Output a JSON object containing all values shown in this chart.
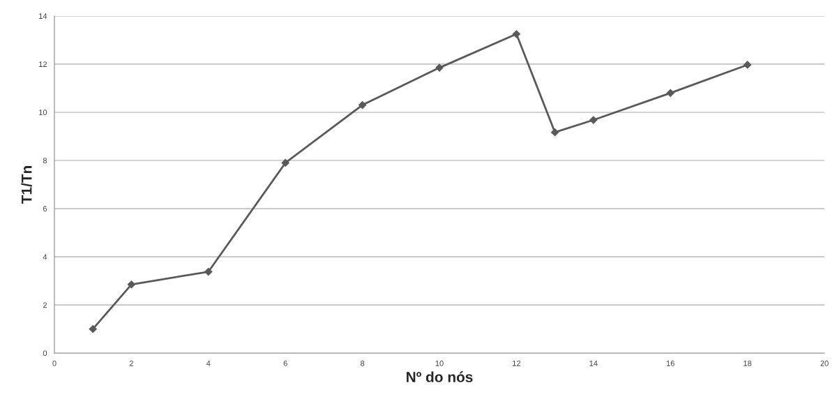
{
  "chart_data": {
    "type": "line",
    "xlabel": "Nº do nós",
    "ylabel": "T1/Tn",
    "x": [
      1,
      2,
      4,
      6,
      8,
      10,
      12,
      13,
      14,
      16,
      18
    ],
    "series": [
      {
        "color": "#595959",
        "values": [
          1.0,
          2.85,
          3.38,
          7.9,
          10.3,
          11.85,
          13.25,
          9.17,
          9.68,
          10.8,
          11.97
        ]
      }
    ],
    "xlim": [
      0,
      20
    ],
    "xticks": [
      0,
      2,
      4,
      6,
      8,
      10,
      12,
      14,
      16,
      18,
      20
    ],
    "ylim": [
      0,
      14
    ],
    "yticks": [
      0,
      2,
      4,
      6,
      8,
      10,
      12,
      14
    ],
    "grid": "y",
    "marker": "diamond",
    "line_style": "solid"
  }
}
